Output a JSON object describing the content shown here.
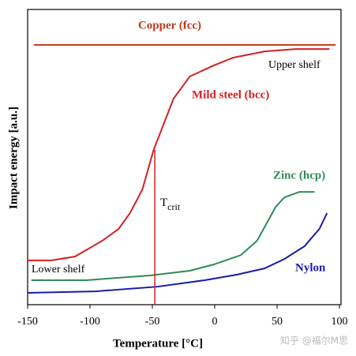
{
  "chart_data": {
    "type": "line",
    "xlabel": "Temperature [°C]",
    "ylabel": "Impact energy [a.u.]",
    "xlim": [
      -150,
      100
    ],
    "xticks": [
      -150,
      -100,
      -50,
      0,
      50,
      100
    ],
    "ylim": [
      0,
      100
    ],
    "series": [
      {
        "name": "Copper (fcc)",
        "color": "#c0391b",
        "x": [
          -145,
          97
        ],
        "values": [
          88,
          88
        ]
      },
      {
        "name": "Mild steel (bcc)",
        "color": "#d42020",
        "x": [
          -150,
          -131,
          -112,
          -90,
          -77,
          -68,
          -58,
          -49,
          -33,
          -20,
          -1,
          15,
          40,
          65,
          92
        ],
        "values": [
          15,
          15,
          16.3,
          21.7,
          25.7,
          31,
          39,
          52.4,
          69.8,
          77.3,
          81,
          83.7,
          85.8,
          86.6,
          86.6
        ]
      },
      {
        "name": "Zinc (hcp)",
        "color": "#2e8b57",
        "x": [
          -147,
          -103,
          -52,
          -20,
          -1,
          21,
          34,
          49,
          56,
          68,
          80
        ],
        "values": [
          8.3,
          8.3,
          9.9,
          11.5,
          13.6,
          16.8,
          21.7,
          33.2,
          36.4,
          38.2,
          38.2
        ]
      },
      {
        "name": "Nylon",
        "color": "#1a1aa8",
        "x": [
          -150,
          -96,
          -46,
          -8,
          18,
          40,
          56,
          72,
          84,
          90
        ],
        "values": [
          4,
          4.5,
          6.1,
          8.3,
          10.2,
          12.3,
          15.5,
          19.8,
          25.7,
          31
        ]
      }
    ],
    "tcrit": {
      "label": "T",
      "sub": "crit",
      "x": -48
    },
    "annotations": [
      "Upper shelf",
      "Lower shelf"
    ],
    "watermark": "知乎 @福尔M思"
  }
}
